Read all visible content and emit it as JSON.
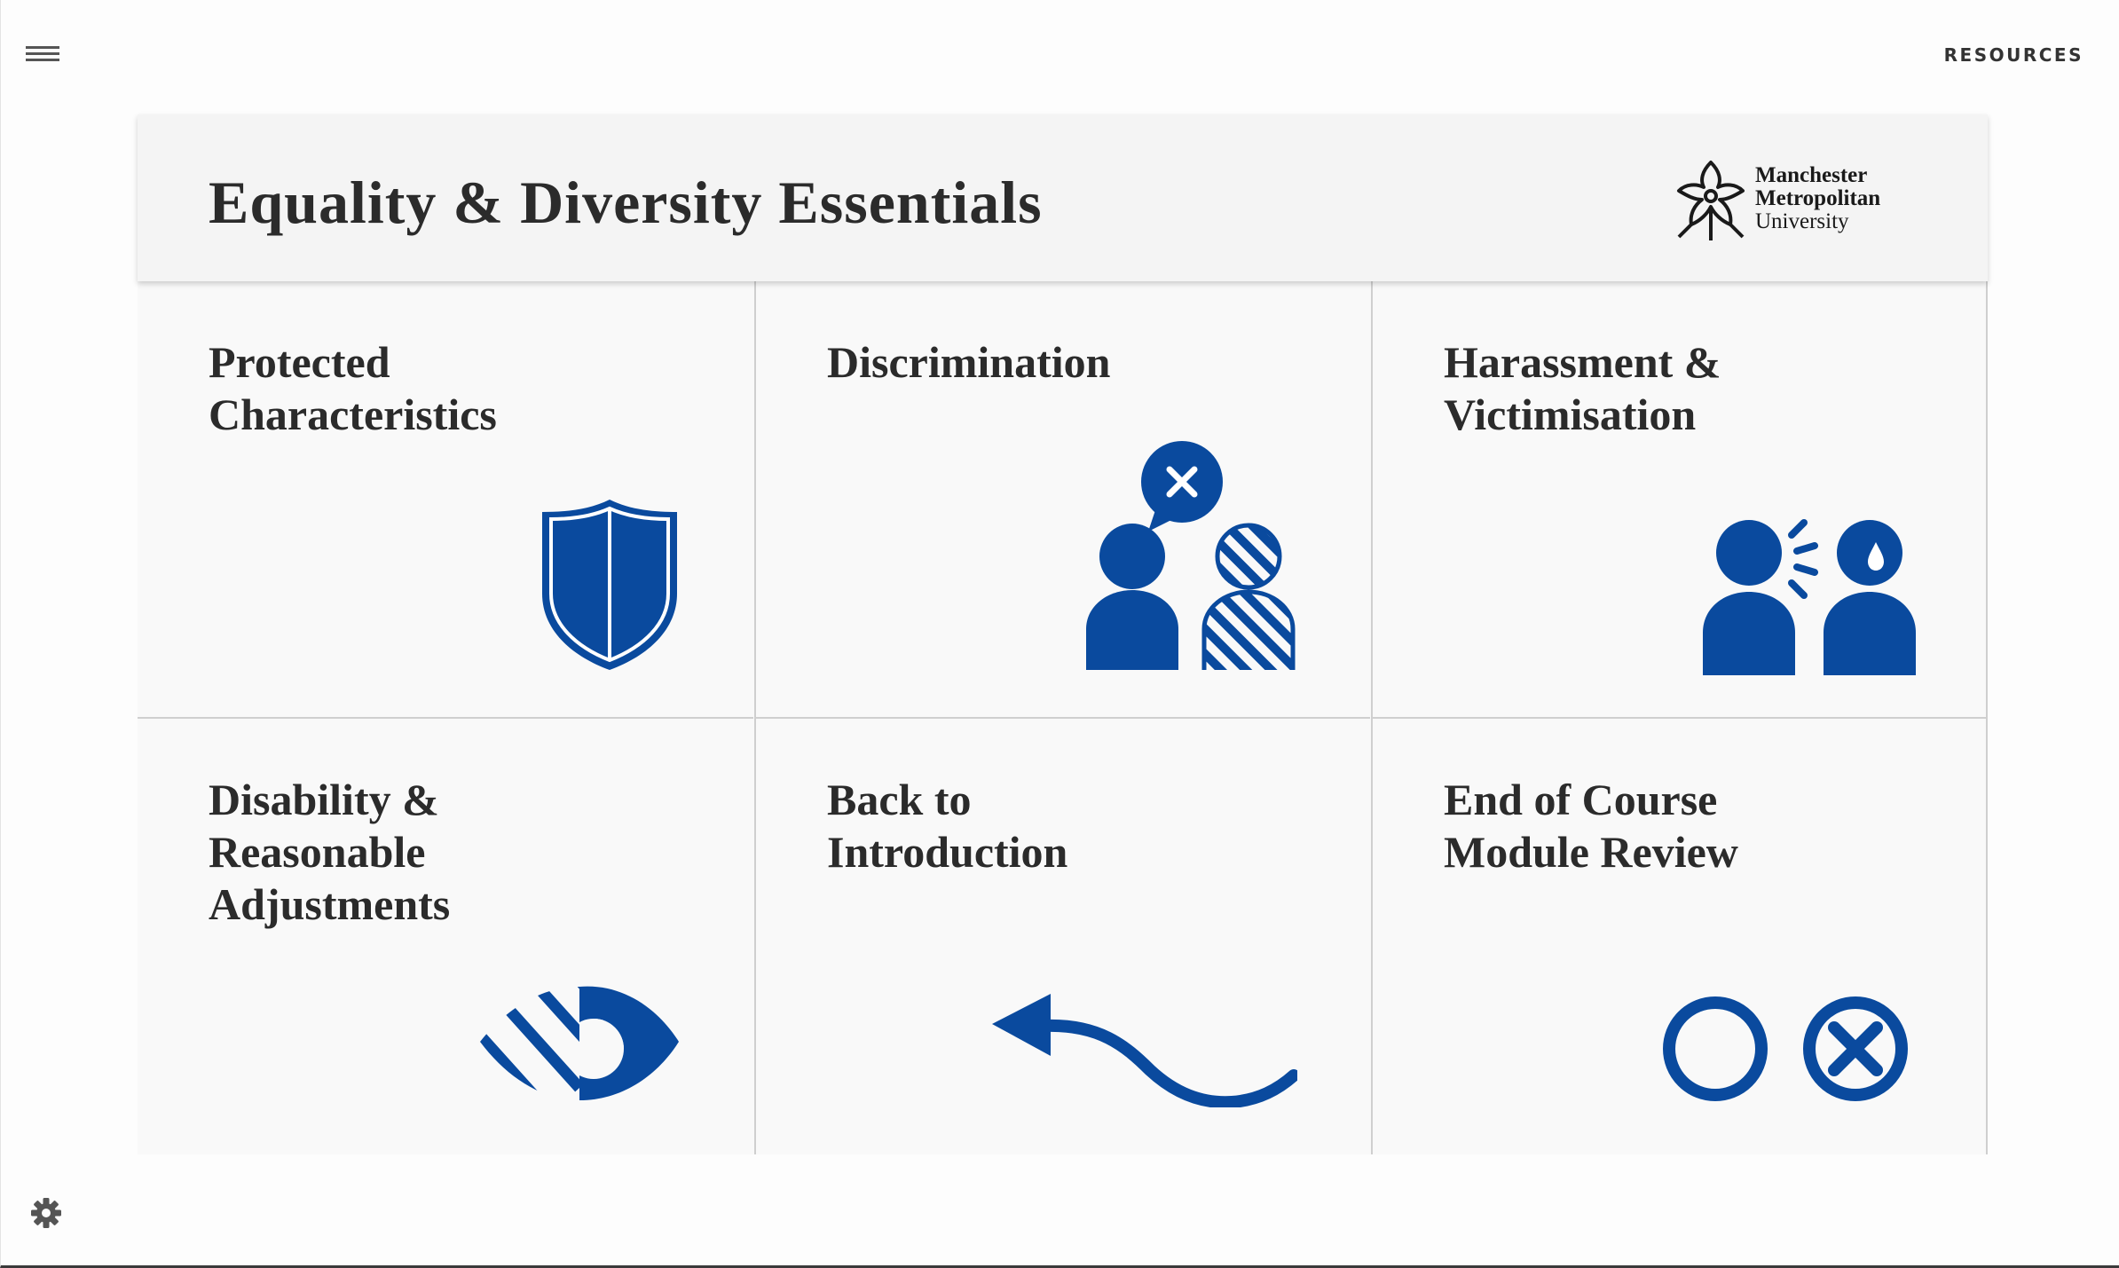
{
  "top_bar": {
    "menu_icon": "hamburger-menu-icon",
    "resources_label": "RESOURCES"
  },
  "header": {
    "title": "Equality & Diversity Essentials",
    "logo": {
      "line1": "Manchester",
      "line2": "Metropolitan",
      "line3": "University"
    }
  },
  "tiles": [
    {
      "label_lines": [
        "Protected",
        "Characteristics"
      ],
      "icon": "shield-icon"
    },
    {
      "label_lines": [
        "Discrimination"
      ],
      "icon": "discrimination-people-icon"
    },
    {
      "label_lines": [
        "Harassment &",
        "Victimisation"
      ],
      "icon": "harassment-people-icon"
    },
    {
      "label_lines": [
        "Disability &",
        "Reasonable",
        "Adjustments"
      ],
      "icon": "impaired-eye-icon"
    },
    {
      "label_lines": [
        "Back to",
        "Introduction"
      ],
      "icon": "curved-back-arrow-icon"
    },
    {
      "label_lines": [
        "End of Course",
        "Module Review"
      ],
      "icon": "circle-and-cross-icon"
    }
  ],
  "footer": {
    "settings_icon": "gear-icon"
  },
  "colors": {
    "accent": "#0a4a9e",
    "title_text": "#2b2b2b",
    "header_bg": "#f4f4f4",
    "tile_bg": "#f9f9f9",
    "divider": "#cfcfcf"
  }
}
